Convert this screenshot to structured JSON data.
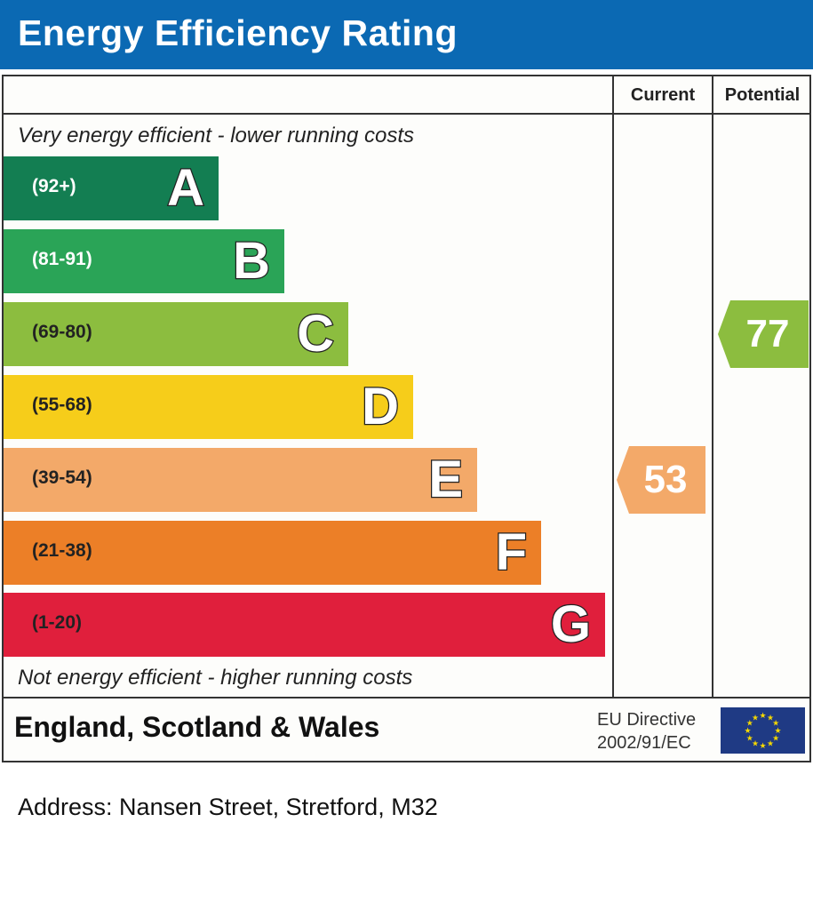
{
  "title": "Energy Efficiency Rating",
  "columns": {
    "current": "Current",
    "potential": "Potential"
  },
  "top_note": "Very energy efficient - lower running costs",
  "bottom_note": "Not energy efficient - higher running costs",
  "footer": {
    "country": "England, Scotland & Wales",
    "directive_line1": "EU Directive",
    "directive_line2": "2002/91/EC",
    "flag_icon": "eu-flag-icon"
  },
  "address": "Address: Nansen Street, Stretford, M32",
  "chart_data": {
    "type": "bar",
    "categories": [
      "A",
      "B",
      "C",
      "D",
      "E",
      "F",
      "G"
    ],
    "bands": [
      {
        "letter": "A",
        "range": "(92+)",
        "color": "#137e52",
        "text_color": "#ffffff"
      },
      {
        "letter": "B",
        "range": "(81-91)",
        "color": "#2aa457",
        "text_color": "#ffffff"
      },
      {
        "letter": "C",
        "range": "(69-80)",
        "color": "#8cbd3f",
        "text_color": "#222222"
      },
      {
        "letter": "D",
        "range": "(55-68)",
        "color": "#f6cd1a",
        "text_color": "#222222"
      },
      {
        "letter": "E",
        "range": "(39-54)",
        "color": "#f3a969",
        "text_color": "#222222"
      },
      {
        "letter": "F",
        "range": "(21-38)",
        "color": "#ec7f27",
        "text_color": "#222222"
      },
      {
        "letter": "G",
        "range": "(1-20)",
        "color": "#e01f3c",
        "text_color": "#222222"
      }
    ],
    "current": {
      "value": 53,
      "band": "E",
      "color": "#f3a969"
    },
    "potential": {
      "value": 77,
      "band": "C",
      "color": "#8cbd3f"
    }
  }
}
